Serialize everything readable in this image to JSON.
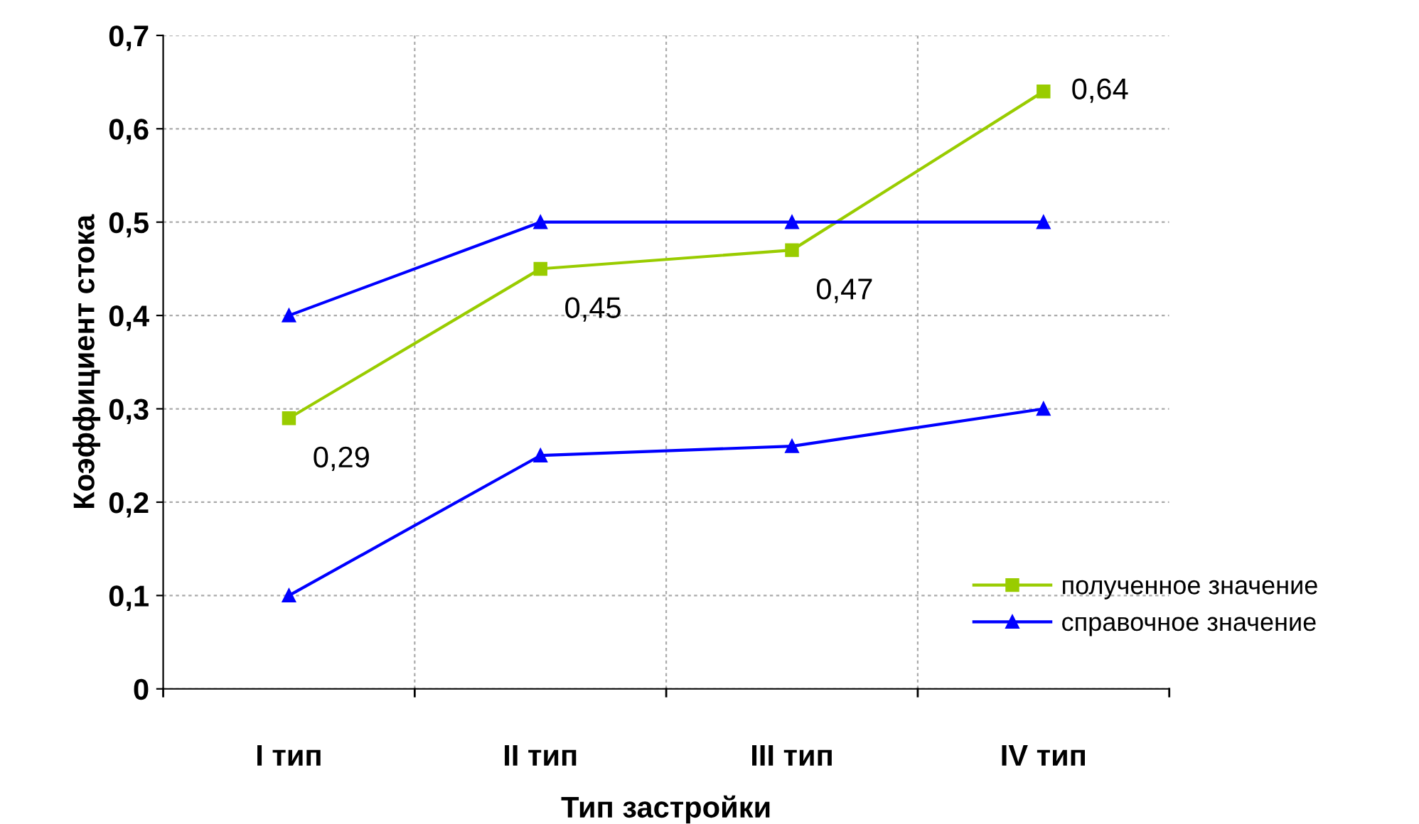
{
  "chart_data": {
    "type": "line",
    "xlabel": "Тип застройки",
    "ylabel": "Коэффициент стока",
    "categories": [
      "I тип",
      "II тип",
      "III тип",
      "IV тип"
    ],
    "series": [
      {
        "name": "полученное значение",
        "color": "#99cc00",
        "marker": "square",
        "values": [
          0.29,
          0.45,
          0.47,
          0.64
        ],
        "value_labels": [
          "0,29",
          "0,45",
          "0,47",
          "0,64"
        ]
      },
      {
        "name": "справочное значение",
        "color": "#0000ff",
        "marker": "triangle",
        "values": [
          0.4,
          0.5,
          0.5,
          0.5
        ]
      },
      {
        "color": "#0000ff",
        "marker": "triangle",
        "values": [
          0.1,
          0.25,
          0.26,
          0.3
        ]
      }
    ],
    "ylim": [
      0,
      0.7
    ],
    "yticks": [
      {
        "value": 0,
        "label": "0"
      },
      {
        "value": 0.1,
        "label": "0,1"
      },
      {
        "value": 0.2,
        "label": "0,2"
      },
      {
        "value": 0.3,
        "label": "0,3"
      },
      {
        "value": 0.4,
        "label": "0,4"
      },
      {
        "value": 0.5,
        "label": "0,5"
      },
      {
        "value": 0.6,
        "label": "0,6"
      },
      {
        "value": 0.7,
        "label": "0,7"
      }
    ],
    "grid": true,
    "legend": "right",
    "line_style": "solid"
  }
}
